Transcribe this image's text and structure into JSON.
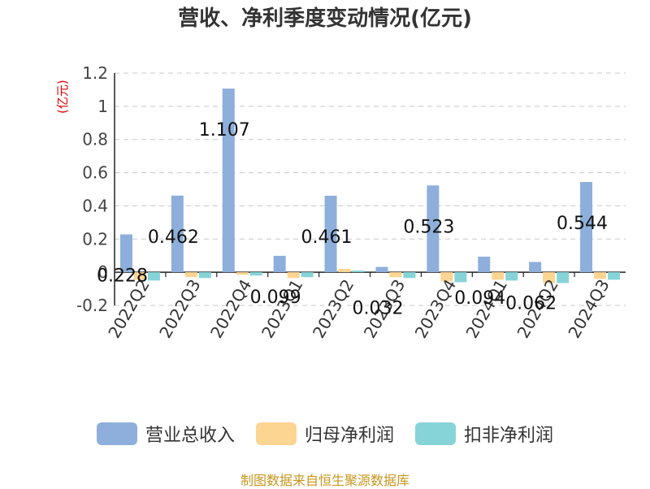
{
  "chart_data": {
    "type": "bar",
    "title": "营收、净利季度变动情况(亿元)",
    "ylabel": "(亿元)",
    "ylim": [
      -0.2,
      1.2
    ],
    "yticks": [
      "-0.2",
      "0",
      "0.2",
      "0.4",
      "0.6",
      "0.8",
      "1",
      "1.2"
    ],
    "grid": true,
    "legend_position": "bottom",
    "categories": [
      "2022Q2",
      "2022Q3",
      "2022Q4",
      "2023Q1",
      "2023Q2",
      "2023Q3",
      "2023Q4",
      "2024Q1",
      "2024Q2",
      "2024Q3"
    ],
    "series": [
      {
        "name": "营业总收入",
        "color": "#8eafdb",
        "values": [
          0.228,
          0.462,
          1.107,
          0.099,
          0.461,
          0.032,
          0.523,
          0.094,
          0.062,
          0.544
        ],
        "labels": [
          "0.228",
          "0.462",
          "1.107",
          "0.099",
          "0.461",
          "0.032",
          "0.523",
          "0.094",
          "0.062",
          "0.544"
        ]
      },
      {
        "name": "归母净利润",
        "color": "#fdd592",
        "values": [
          -0.045,
          -0.03,
          -0.015,
          -0.035,
          0.02,
          -0.03,
          -0.055,
          -0.045,
          -0.065,
          -0.04
        ]
      },
      {
        "name": "扣非净利润",
        "color": "#86d4d8",
        "values": [
          -0.05,
          -0.035,
          -0.02,
          -0.03,
          0.01,
          -0.035,
          -0.06,
          -0.05,
          -0.065,
          -0.045
        ]
      }
    ]
  },
  "source": "制图数据来自恒生聚源数据库"
}
